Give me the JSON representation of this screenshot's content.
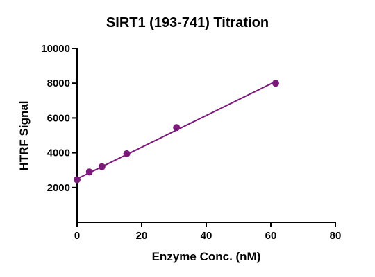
{
  "chart_data": {
    "type": "scatter",
    "title": "SIRT1 (193-741) Titration",
    "xlabel": "Enzyme Conc. (nM)",
    "ylabel": "HTRF Signal",
    "xlim": [
      0,
      80
    ],
    "ylim": [
      0,
      10000
    ],
    "xticks": [
      "0",
      "20",
      "40",
      "60",
      "80"
    ],
    "yticks": [
      "2000",
      "4000",
      "6000",
      "8000",
      "10000"
    ],
    "series": [
      {
        "color": "#7b1a7b",
        "points": [
          {
            "x": 0,
            "y": 2450
          },
          {
            "x": 3.8,
            "y": 2900
          },
          {
            "x": 7.7,
            "y": 3200
          },
          {
            "x": 15.4,
            "y": 3950
          },
          {
            "x": 30.8,
            "y": 5450
          },
          {
            "x": 61.5,
            "y": 8000
          }
        ],
        "fit_line": {
          "x": [
            0,
            61.5
          ],
          "y": [
            2500,
            8100
          ]
        }
      }
    ],
    "grid": false,
    "legend": "none"
  }
}
